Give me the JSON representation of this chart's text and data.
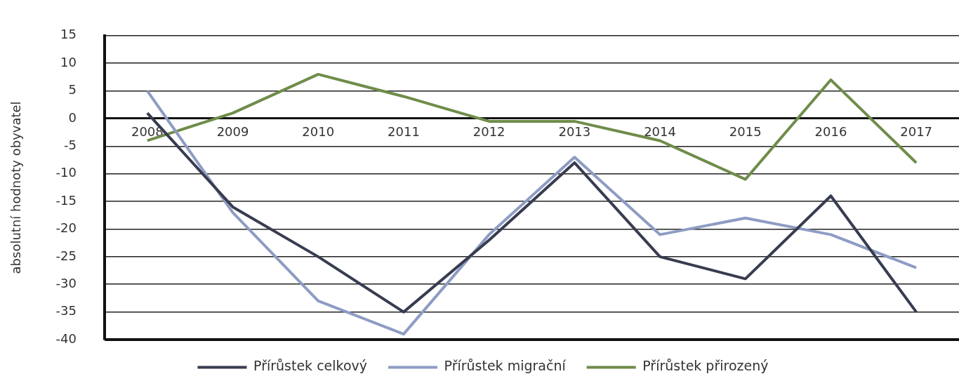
{
  "chart_data": {
    "type": "line",
    "ylabel": "absolutní hodnoty obyvatel",
    "categories": [
      "2008",
      "2009",
      "2010",
      "2011",
      "2012",
      "2013",
      "2014",
      "2015",
      "2016",
      "2017"
    ],
    "series": [
      {
        "name": "Přírůstek celkový",
        "color": "#383c50",
        "values": [
          1,
          -16,
          -25,
          -35,
          -22,
          -8,
          -25,
          -29,
          -14,
          -35
        ]
      },
      {
        "name": "Přírůstek migrační",
        "color": "#8e9cc4",
        "values": [
          5,
          -17,
          -33,
          -39,
          -21,
          -7,
          -21,
          -18,
          -21,
          -27
        ]
      },
      {
        "name": "Přírůstek přirozený",
        "color": "#6f8c4a",
        "values": [
          -4,
          1,
          8,
          4,
          -0.5,
          -0.5,
          -4,
          -11,
          7,
          -8
        ]
      }
    ],
    "ylim": [
      -40,
      15
    ],
    "yticks": [
      -40,
      -35,
      -30,
      -25,
      -20,
      -15,
      -10,
      -5,
      0,
      5,
      10,
      15
    ],
    "grid": "y",
    "legend": "bottom",
    "marker": "none",
    "line_style": "solid"
  }
}
